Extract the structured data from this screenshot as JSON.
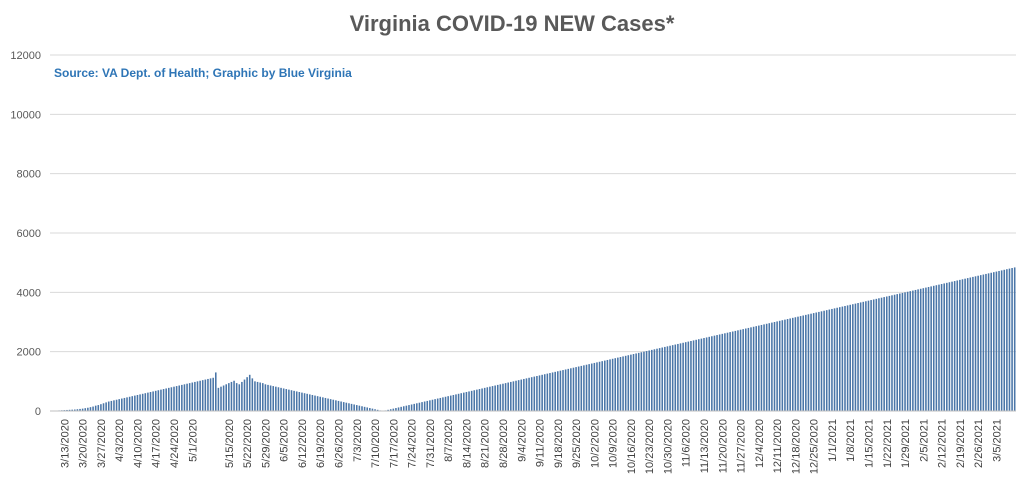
{
  "chart_data": {
    "type": "bar",
    "title": "Virginia COVID-19 NEW Cases*",
    "subtitle": "Source: VA Dept. of Health; Graphic by Blue Virginia",
    "xlabel": "",
    "ylabel": "",
    "ylim": [
      0,
      12000
    ],
    "yticks": [
      0,
      2000,
      4000,
      6000,
      8000,
      10000,
      12000
    ],
    "grid": true,
    "legend": "none",
    "bar_color": "#4a76a8",
    "x_start": "3/8/2020",
    "x_end": "3/12/2021",
    "xtick_labels": [
      "3/13/2020",
      "3/20/2020",
      "3/27/2020",
      "4/3/2020",
      "4/10/2020",
      "4/17/2020",
      "4/24/2020",
      "5/1/2020",
      "5/15/2020",
      "5/22/2020",
      "5/29/2020",
      "6/5/2020",
      "6/12/2020",
      "6/19/2020",
      "6/26/2020",
      "7/3/2020",
      "7/10/2020",
      "7/17/2020",
      "7/24/2020",
      "7/31/2020",
      "8/7/2020",
      "8/14/2020",
      "8/21/2020",
      "8/28/2020",
      "9/4/2020",
      "9/11/2020",
      "9/18/2020",
      "9/25/2020",
      "10/2/2020",
      "10/9/2020",
      "10/16/2020",
      "10/23/2020",
      "10/30/2020",
      "11/6/2020",
      "11/13/2020",
      "11/20/2020",
      "11/27/2020",
      "12/4/2020",
      "12/11/2020",
      "12/18/2020",
      "12/25/2020",
      "1/1/2021",
      "1/8/2021",
      "1/15/2021",
      "1/22/2021",
      "1/29/2021",
      "2/5/2021",
      "2/12/2021",
      "2/19/2021",
      "2/26/2021",
      "3/5/2021"
    ],
    "values": [
      5,
      10,
      15,
      20,
      25,
      30,
      35,
      40,
      45,
      50,
      60,
      70,
      80,
      95,
      110,
      130,
      150,
      180,
      200,
      230,
      260,
      290,
      320,
      340,
      360,
      380,
      400,
      420,
      440,
      460,
      480,
      500,
      520,
      540,
      560,
      580,
      600,
      620,
      640,
      660,
      680,
      700,
      720,
      740,
      760,
      780,
      800,
      820,
      840,
      860,
      880,
      900,
      920,
      940,
      960,
      980,
      1000,
      1020,
      1040,
      1060,
      1080,
      1100,
      1120,
      1300,
      780,
      820,
      860,
      900,
      940,
      980,
      1020,
      940,
      900,
      980,
      1060,
      1140,
      1220,
      1100,
      1000,
      980,
      960,
      940,
      900,
      880,
      860,
      840,
      820,
      800,
      780,
      760,
      740,
      720,
      700,
      680,
      660,
      640,
      620,
      600,
      580,
      560,
      540,
      520,
      500,
      480,
      460,
      440,
      420,
      400,
      380,
      360,
      340,
      320,
      300,
      280,
      260,
      240,
      220,
      200,
      180,
      160,
      140,
      120,
      100,
      80,
      60,
      40,
      20,
      0,
      20,
      40,
      60,
      80,
      100,
      120,
      140,
      160,
      180,
      200,
      220,
      240,
      260,
      280,
      300,
      320,
      340,
      360,
      380,
      400,
      420,
      440,
      460,
      480,
      500,
      520,
      540,
      560,
      580,
      600,
      620,
      640,
      660,
      680,
      700,
      720,
      740,
      760,
      780,
      800,
      820,
      840,
      860,
      880,
      900,
      920,
      940,
      960,
      980,
      1000,
      1020,
      1040,
      1060,
      1080,
      1100,
      1120,
      1140,
      1160,
      1180,
      1200,
      1220,
      1240,
      1260,
      1280,
      1300,
      1320,
      1340,
      1360,
      1380,
      1400,
      1420,
      1440,
      1460,
      1480,
      1500,
      1520,
      1540,
      1560,
      1580,
      1600,
      1620,
      1640,
      1660,
      1680,
      1700,
      1720,
      1740,
      1760,
      1780,
      1800,
      1820,
      1840,
      1860,
      1880,
      1900,
      1920,
      1940,
      1960,
      1980,
      2000,
      2020,
      2040,
      2060,
      2080,
      2100,
      2120,
      2140,
      2160,
      2180,
      2200,
      2220,
      2240,
      2260,
      2280,
      2300,
      2320,
      2340,
      2360,
      2380,
      2400,
      2420,
      2440,
      2460,
      2480,
      2500,
      2520,
      2540,
      2560,
      2580,
      2600,
      2620,
      2640,
      2660,
      2680,
      2700,
      2720,
      2740,
      2760,
      2780,
      2800,
      2820,
      2840,
      2860,
      2880,
      2900,
      2920,
      2940,
      2960,
      2980,
      3000,
      3020,
      3040,
      3060,
      3080,
      3100,
      3120,
      3140,
      3160,
      3180,
      3200,
      3220,
      3240,
      3260,
      3280,
      3300,
      3320,
      3340,
      3360,
      3380,
      3400,
      3420,
      3440,
      3460,
      3480,
      3500,
      3520,
      3540,
      3560,
      3580,
      3600,
      3620,
      3640,
      3660,
      3680,
      3700,
      3720,
      3740,
      3760,
      3780,
      3800,
      3820,
      3840,
      3860,
      3880,
      3900,
      3920,
      3940,
      3960,
      3980,
      4000,
      4020,
      4040,
      4060,
      4080,
      4100,
      4120,
      4140,
      4160,
      4180,
      4200,
      4220,
      4240,
      4260,
      4280,
      4300,
      4320,
      4340,
      4360,
      4380,
      4400,
      4420,
      4440,
      4460,
      4480,
      4500,
      4520,
      4540,
      4560,
      4580,
      4600,
      4620,
      4640,
      4660,
      4680,
      4700,
      4720,
      4740,
      4760,
      4780,
      4800,
      4820,
      4840,
      4860,
      4880,
      4900,
      4920,
      4940,
      4960,
      4980,
      5000,
      5020,
      5040,
      5060,
      5080,
      5100,
      5120,
      5140,
      5160,
      5180,
      5200,
      5220,
      5240,
      5260,
      5280
    ]
  }
}
